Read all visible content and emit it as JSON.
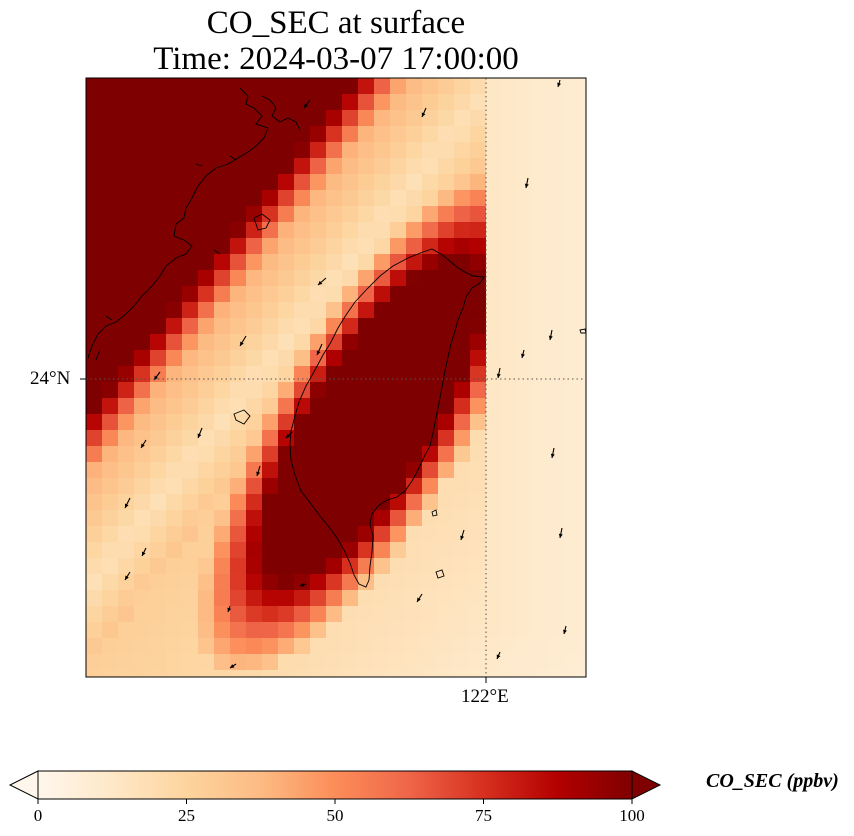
{
  "map": {
    "title_line1": "CO_SEC at surface",
    "title_line2": "Time: 2024-03-07 17:00:00",
    "lat_label": "24°N",
    "lon_label": "122°E",
    "variable": "CO_SEC",
    "units": "ppbv",
    "gridline_style": "dotted",
    "features": [
      "coastline",
      "wind-vectors",
      "gridlines"
    ]
  },
  "colorbar": {
    "title": "CO_SEC (ppbv)",
    "colormap": "OrRd",
    "min": 0,
    "max": 100,
    "extend": "both",
    "ticks": [
      "0",
      "25",
      "50",
      "75",
      "100"
    ],
    "stops": [
      {
        "value": 0,
        "color": "#fff7ec"
      },
      {
        "value": 12.5,
        "color": "#fee8c8"
      },
      {
        "value": 25,
        "color": "#fdd49e"
      },
      {
        "value": 37.5,
        "color": "#fdbb84"
      },
      {
        "value": 50,
        "color": "#fc8d59"
      },
      {
        "value": 62.5,
        "color": "#ef6548"
      },
      {
        "value": 75,
        "color": "#d7301f"
      },
      {
        "value": 87.5,
        "color": "#b30000"
      },
      {
        "value": 100,
        "color": "#7f0000"
      }
    ]
  }
}
